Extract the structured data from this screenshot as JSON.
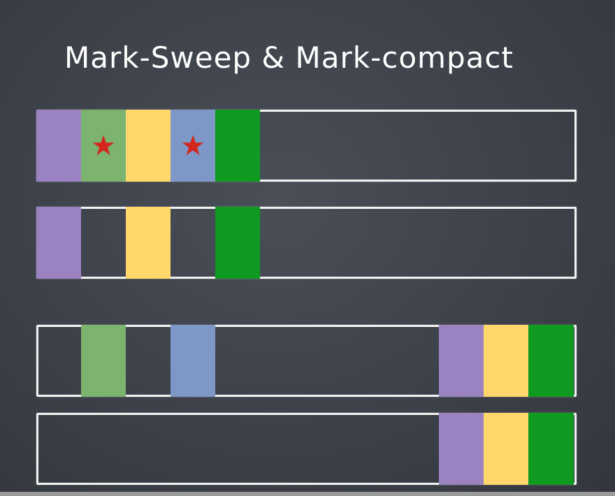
{
  "slide": {
    "title": "Mark-Sweep & Mark-compact",
    "colors": {
      "purple": "#9b83c2",
      "green_light": "#7cb36e",
      "yellow": "#ffd76b",
      "blue": "#7d97c6",
      "green_dark": "#0f9a22",
      "star": "#d4261c",
      "frame": "#f2f2f2"
    },
    "rows": [
      {
        "name": "heap-before-gc",
        "blocks": [
          {
            "slot": 0,
            "color": "purple",
            "marked": false
          },
          {
            "slot": 1,
            "color": "green_light",
            "marked": true
          },
          {
            "slot": 2,
            "color": "yellow",
            "marked": false
          },
          {
            "slot": 3,
            "color": "blue",
            "marked": true
          },
          {
            "slot": 4,
            "color": "green_dark",
            "marked": false
          }
        ]
      },
      {
        "name": "heap-after-sweep",
        "blocks": [
          {
            "slot": 0,
            "color": "purple",
            "marked": false
          },
          {
            "slot": 2,
            "color": "yellow",
            "marked": false
          },
          {
            "slot": 4,
            "color": "green_dark",
            "marked": false
          }
        ]
      },
      {
        "name": "heap-during-compact",
        "blocks": [
          {
            "slot": 1,
            "color": "green_light",
            "marked": false
          },
          {
            "slot": 3,
            "color": "blue",
            "marked": false
          },
          {
            "slot": 9,
            "color": "purple",
            "marked": false
          },
          {
            "slot": 10,
            "color": "yellow",
            "marked": false
          },
          {
            "slot": 11,
            "color": "green_dark",
            "marked": false
          }
        ]
      },
      {
        "name": "heap-after-compact",
        "blocks": [
          {
            "slot": 9,
            "color": "purple",
            "marked": false
          },
          {
            "slot": 10,
            "color": "yellow",
            "marked": false
          },
          {
            "slot": 11,
            "color": "green_dark",
            "marked": false
          }
        ]
      }
    ],
    "star_glyph": "★"
  }
}
